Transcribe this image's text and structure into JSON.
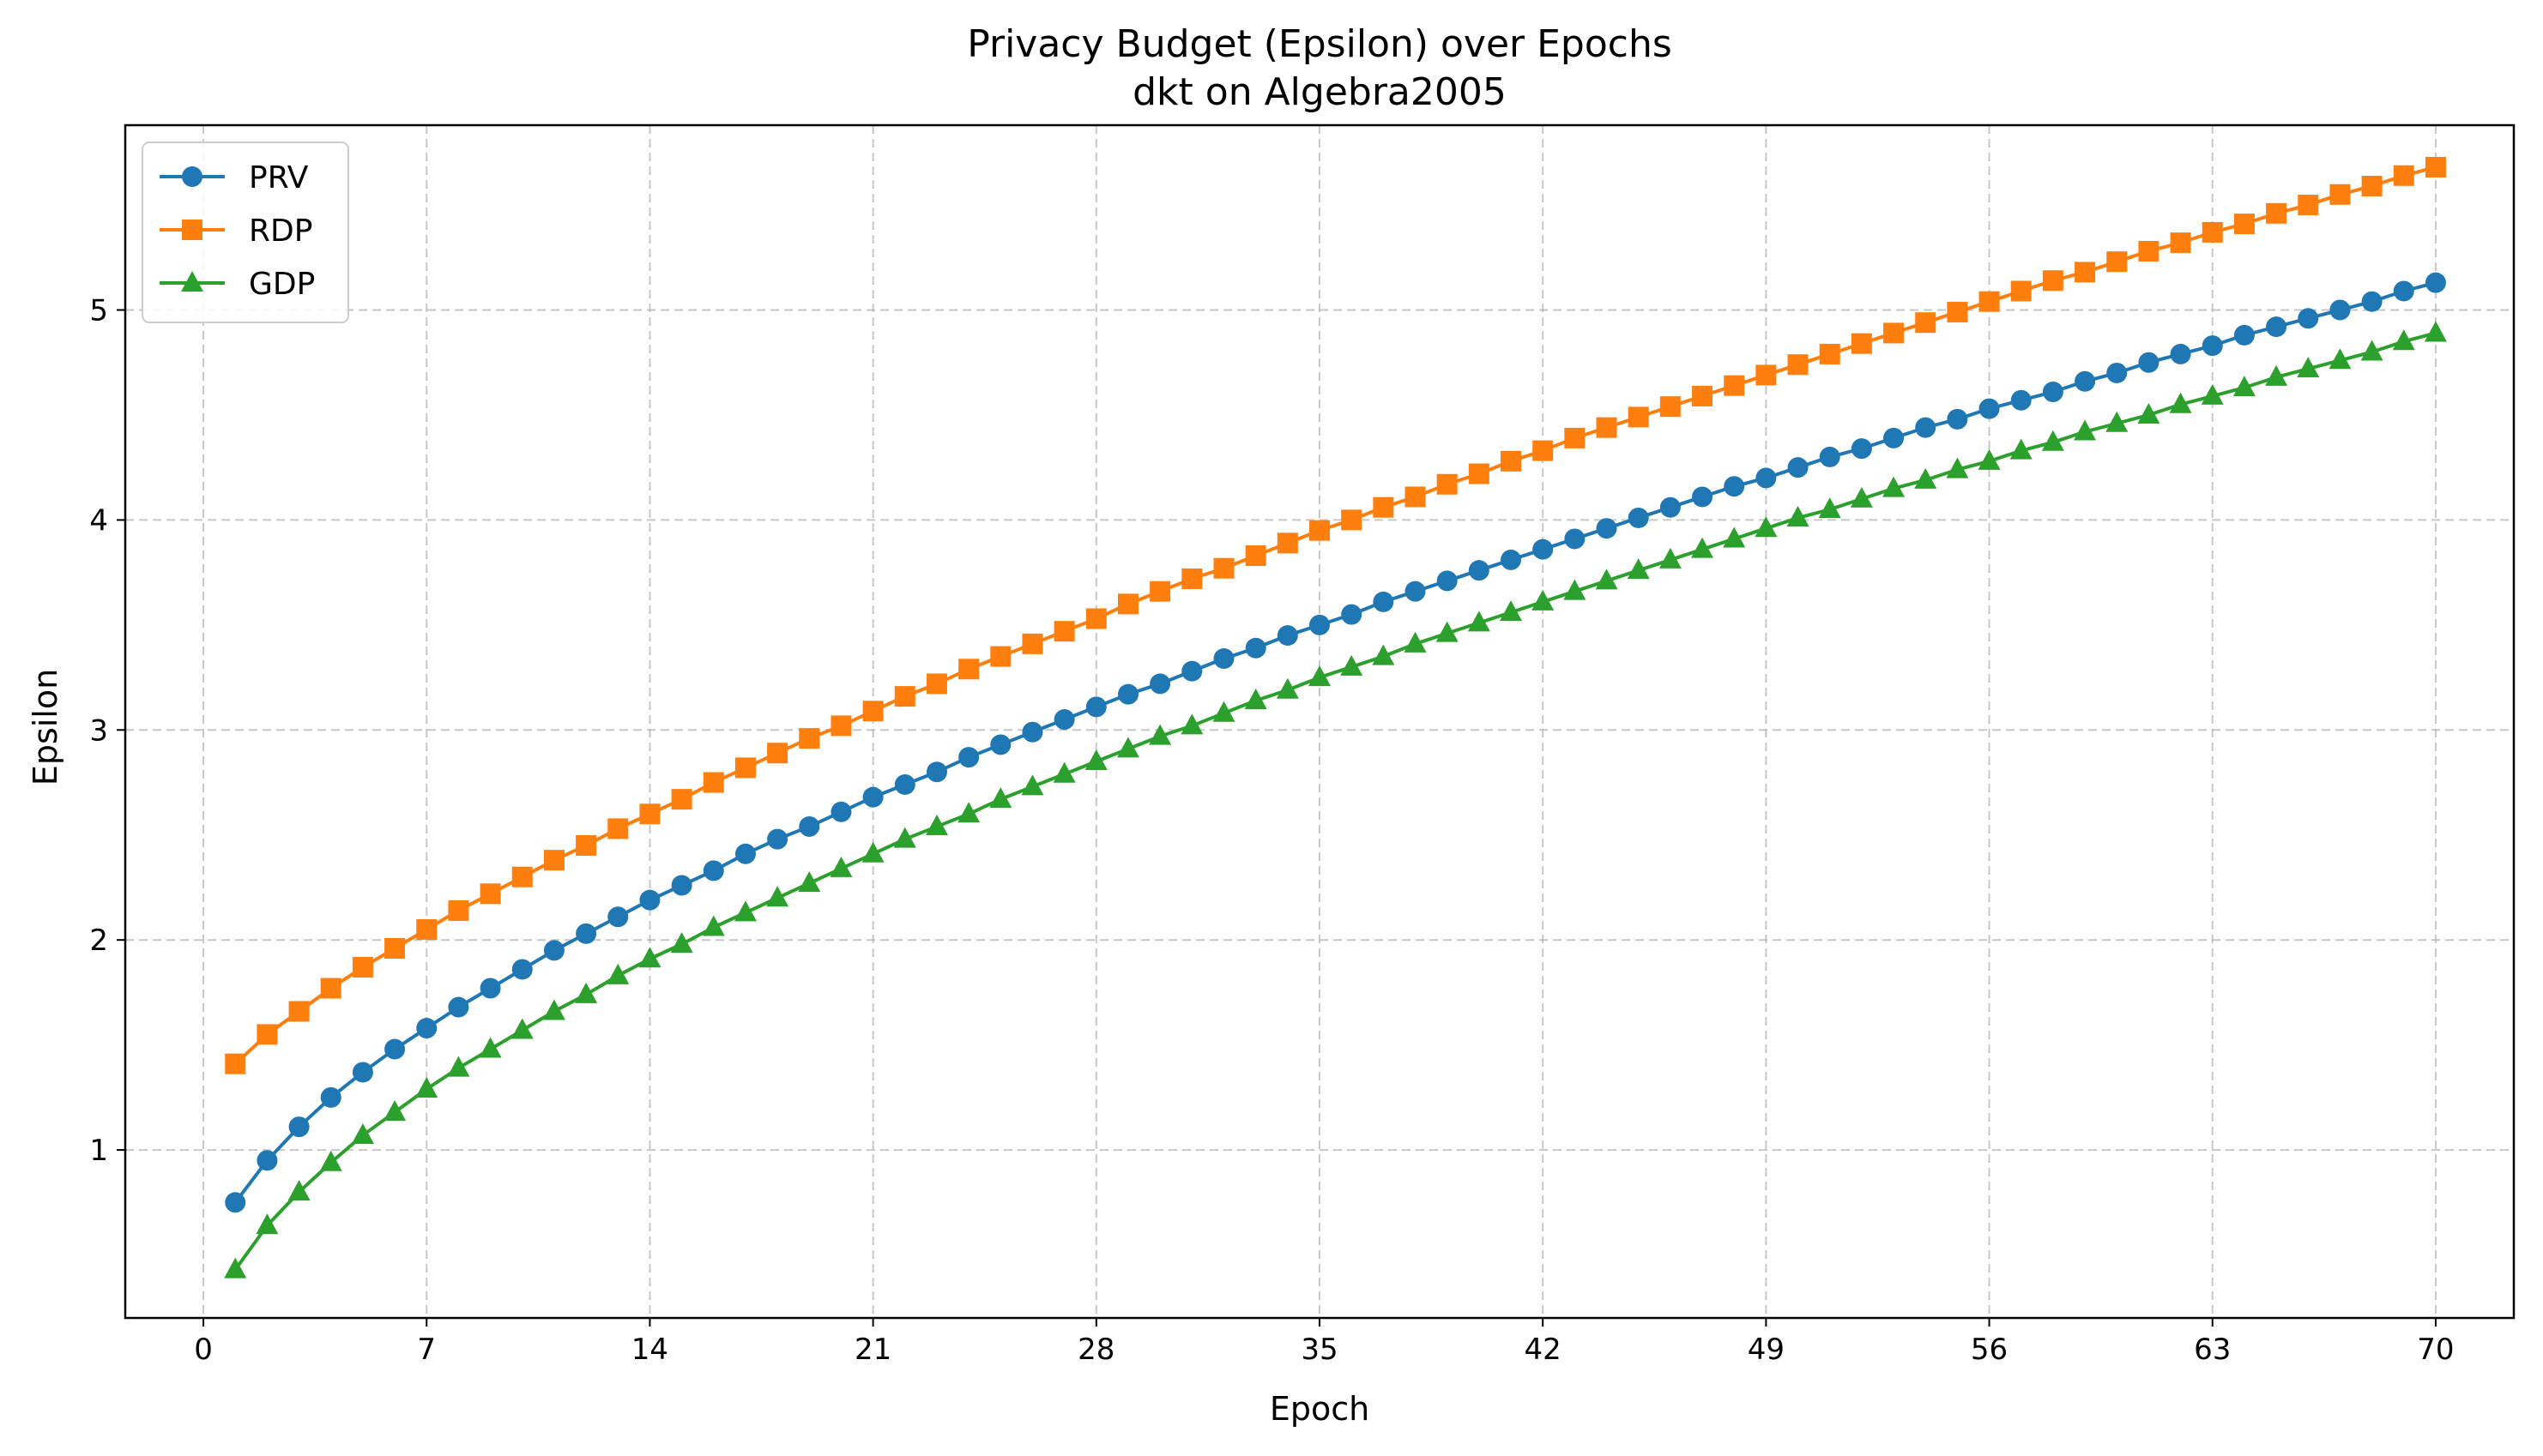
{
  "chart_data": {
    "type": "line",
    "title": "Privacy Budget (Epsilon) over Epochs",
    "subtitle": "dkt on Algebra2005",
    "xlabel": "Epoch",
    "ylabel": "Epsilon",
    "xlim": [
      -2.45,
      72.45
    ],
    "ylim": [
      0.2,
      5.88
    ],
    "xticks": [
      0,
      7,
      14,
      21,
      28,
      35,
      42,
      49,
      56,
      63,
      70
    ],
    "yticks": [
      1,
      2,
      3,
      4,
      5
    ],
    "grid": true,
    "legend_position": "top-left",
    "x": [
      1,
      2,
      3,
      4,
      5,
      6,
      7,
      8,
      9,
      10,
      11,
      12,
      13,
      14,
      15,
      16,
      17,
      18,
      19,
      20,
      21,
      22,
      23,
      24,
      25,
      26,
      27,
      28,
      29,
      30,
      31,
      32,
      33,
      34,
      35,
      36,
      37,
      38,
      39,
      40,
      41,
      42,
      43,
      44,
      45,
      46,
      47,
      48,
      49,
      50,
      51,
      52,
      53,
      54,
      55,
      56,
      57,
      58,
      59,
      60,
      61,
      62,
      63,
      64,
      65,
      66,
      67,
      68,
      69,
      70
    ],
    "series": [
      {
        "name": "PRV",
        "color": "#1f77b4",
        "marker": "circle",
        "values": [
          0.75,
          0.95,
          1.11,
          1.25,
          1.37,
          1.48,
          1.58,
          1.68,
          1.77,
          1.86,
          1.95,
          2.03,
          2.11,
          2.19,
          2.26,
          2.33,
          2.41,
          2.48,
          2.54,
          2.61,
          2.68,
          2.74,
          2.8,
          2.87,
          2.93,
          2.99,
          3.05,
          3.11,
          3.17,
          3.22,
          3.28,
          3.34,
          3.39,
          3.45,
          3.5,
          3.55,
          3.61,
          3.66,
          3.71,
          3.76,
          3.81,
          3.86,
          3.91,
          3.96,
          4.01,
          4.06,
          4.11,
          4.16,
          4.2,
          4.25,
          4.3,
          4.34,
          4.39,
          4.44,
          4.48,
          4.53,
          4.57,
          4.61,
          4.66,
          4.7,
          4.75,
          4.79,
          4.83,
          4.88,
          4.92,
          4.96,
          5.0,
          5.04,
          5.09,
          5.13
        ]
      },
      {
        "name": "RDP",
        "color": "#ff7f0e",
        "marker": "square",
        "values": [
          1.41,
          1.55,
          1.66,
          1.77,
          1.87,
          1.96,
          2.05,
          2.14,
          2.22,
          2.3,
          2.38,
          2.45,
          2.53,
          2.6,
          2.67,
          2.75,
          2.82,
          2.89,
          2.96,
          3.02,
          3.09,
          3.16,
          3.22,
          3.29,
          3.35,
          3.41,
          3.47,
          3.53,
          3.6,
          3.66,
          3.72,
          3.77,
          3.83,
          3.89,
          3.95,
          4.0,
          4.06,
          4.11,
          4.17,
          4.22,
          4.28,
          4.33,
          4.39,
          4.44,
          4.49,
          4.54,
          4.59,
          4.64,
          4.69,
          4.74,
          4.79,
          4.84,
          4.89,
          4.94,
          4.99,
          5.04,
          5.09,
          5.14,
          5.18,
          5.23,
          5.28,
          5.32,
          5.37,
          5.41,
          5.46,
          5.5,
          5.55,
          5.59,
          5.64,
          5.68
        ]
      },
      {
        "name": "GDP",
        "color": "#2ca02c",
        "marker": "triangle",
        "values": [
          0.43,
          0.64,
          0.8,
          0.94,
          1.07,
          1.18,
          1.29,
          1.39,
          1.48,
          1.57,
          1.66,
          1.74,
          1.83,
          1.91,
          1.98,
          2.06,
          2.13,
          2.2,
          2.27,
          2.34,
          2.41,
          2.48,
          2.54,
          2.6,
          2.67,
          2.73,
          2.79,
          2.85,
          2.91,
          2.97,
          3.02,
          3.08,
          3.14,
          3.19,
          3.25,
          3.3,
          3.35,
          3.41,
          3.46,
          3.51,
          3.56,
          3.61,
          3.66,
          3.71,
          3.76,
          3.81,
          3.86,
          3.91,
          3.96,
          4.01,
          4.05,
          4.1,
          4.15,
          4.19,
          4.24,
          4.28,
          4.33,
          4.37,
          4.42,
          4.46,
          4.5,
          4.55,
          4.59,
          4.63,
          4.68,
          4.72,
          4.76,
          4.8,
          4.85,
          4.89
        ]
      }
    ]
  }
}
